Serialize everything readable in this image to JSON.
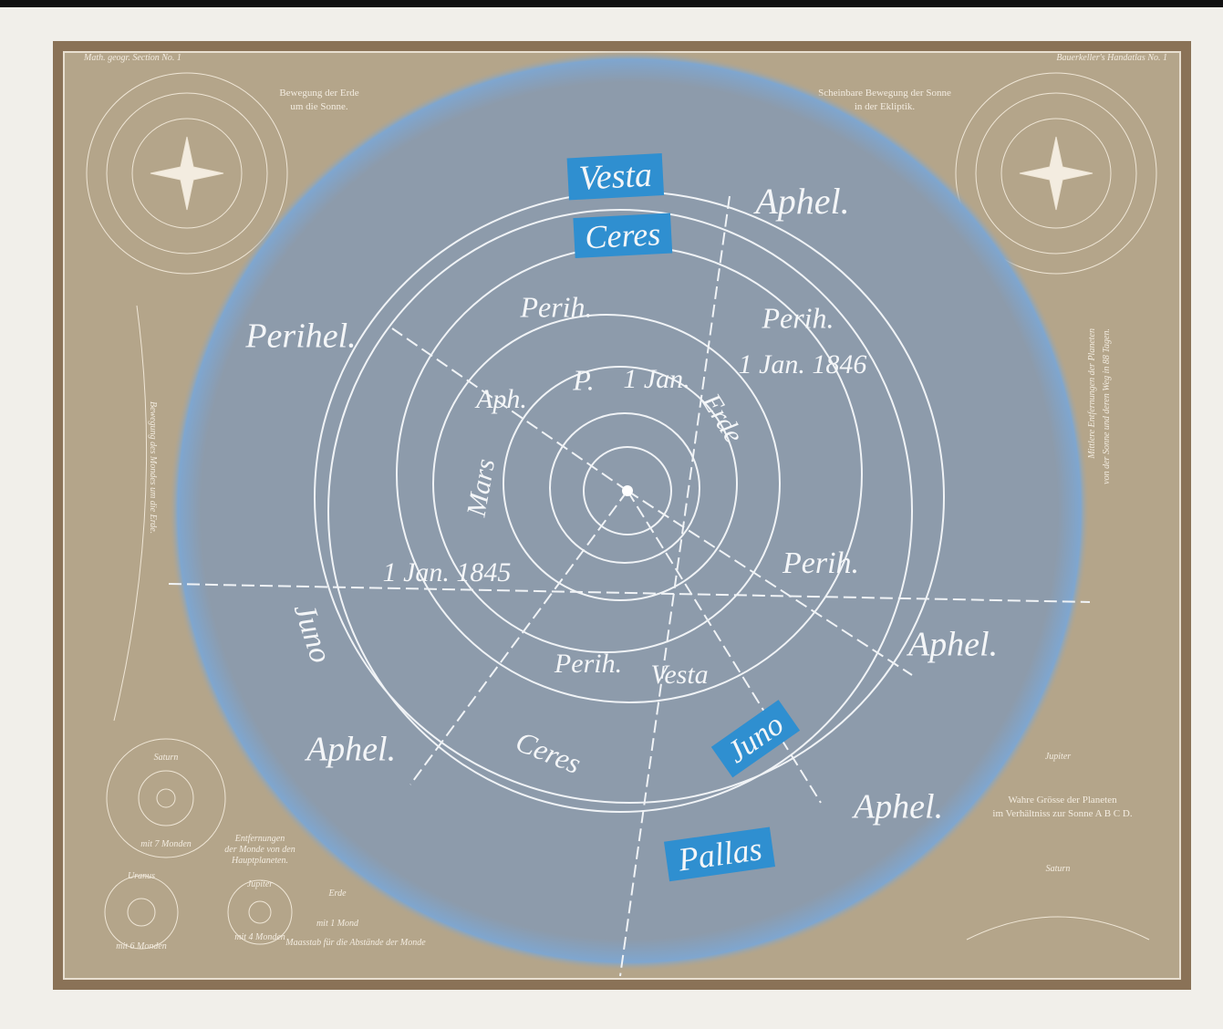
{
  "header": {
    "left": "Math. geogr. Section No. 1",
    "right": "Bauerkeller's Handatlas No. 1"
  },
  "insets": {
    "left_title": [
      "Bewegung der Erde",
      "um die Sonne."
    ],
    "right_title": [
      "Scheinbare Bewegung der Sonne",
      "in der Ekliptik."
    ],
    "moon": "Bewegung des Mondes um die Erde.",
    "distances": [
      "Mittlere Entfernungen der Planeten",
      "von der Sonne und deren Weg in 88 Tagen."
    ],
    "sizes": [
      "Wahre Grösse der Planeten",
      "im Verhältniss zur Sonne A B C D."
    ],
    "moons_title": [
      "Entfernungen",
      "der Monde von den",
      "Hauptplaneten."
    ],
    "saturn": "Saturn",
    "saturn_moons": "mit 7 Monden",
    "uranus": "Uranus",
    "uranus_moons": "mit 6 Monden",
    "jupiter": "Jupiter",
    "jupiter_moons": "mit 4 Monden",
    "earth": "Erde",
    "earth_moons": "mit 1 Mond",
    "scale": "Maasstab für die Abstände der Monde",
    "jupiter_right": "Jupiter",
    "saturn_right": "Saturn"
  },
  "labels": [
    {
      "text": "Vesta",
      "highlight": true
    },
    {
      "text": "Ceres",
      "highlight": true
    },
    {
      "text": "Aphel."
    },
    {
      "text": "Perihel."
    },
    {
      "text": "Perih."
    },
    {
      "text": "Perih."
    },
    {
      "text": "1 Jan. 1846"
    },
    {
      "text": "P."
    },
    {
      "text": "1 Jan."
    },
    {
      "text": "Aph."
    },
    {
      "text": "Erde"
    },
    {
      "text": "Mars"
    },
    {
      "text": "1 Jan. 1845"
    },
    {
      "text": "Perih."
    },
    {
      "text": "Juno"
    },
    {
      "text": "Aphel."
    },
    {
      "text": "Perih."
    },
    {
      "text": "Vesta"
    },
    {
      "text": "Juno",
      "highlight": true
    },
    {
      "text": "Aphel."
    },
    {
      "text": "Ceres"
    },
    {
      "text": "Aphel."
    },
    {
      "text": "Pallas",
      "highlight": true
    }
  ]
}
